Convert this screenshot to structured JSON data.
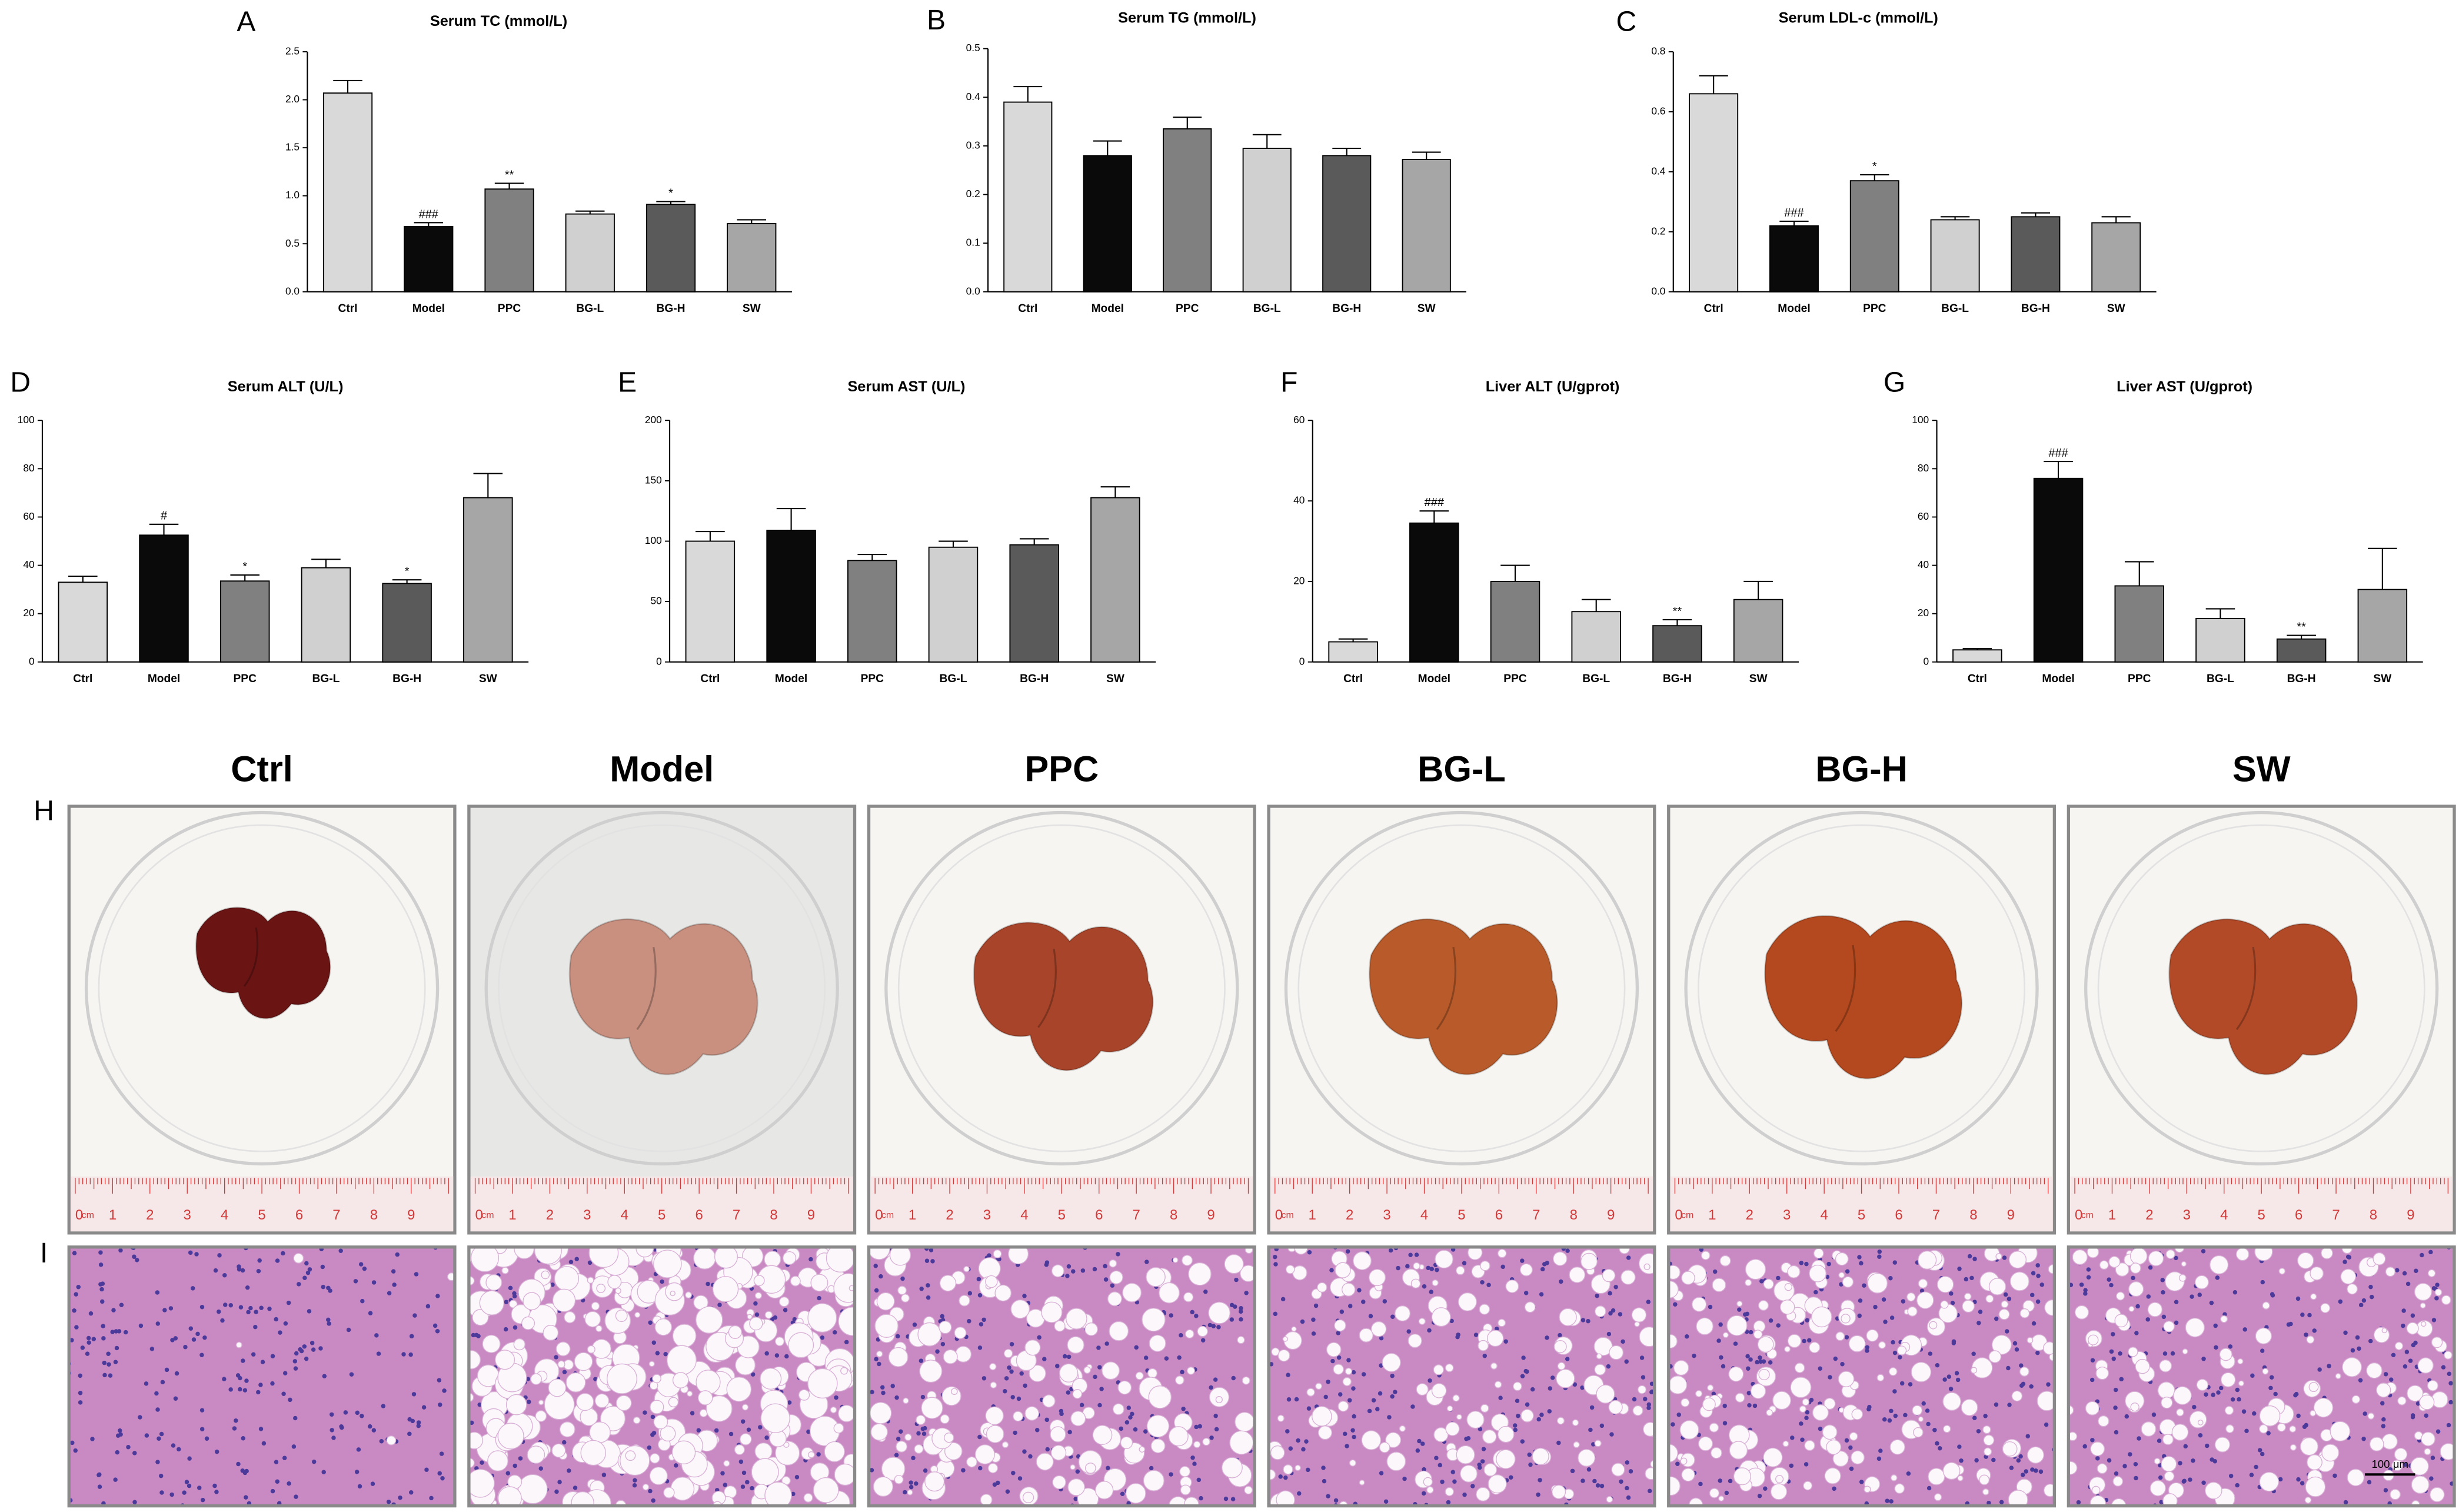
{
  "chart_data": [
    {
      "type": "bar",
      "panel": "A",
      "title": "Serum TC (mmol/L)",
      "categories": [
        "Ctrl",
        "Model",
        "PPC",
        "BG-L",
        "BG-H",
        "SW"
      ],
      "values": [
        2.07,
        0.68,
        1.07,
        0.81,
        0.91,
        0.71
      ],
      "errors": [
        0.13,
        0.04,
        0.06,
        0.03,
        0.03,
        0.04
      ],
      "value_annotations": [
        null,
        "###",
        "**",
        null,
        "*",
        null
      ],
      "colors": [
        "#d9d9d9",
        "#0a0a0a",
        "#808080",
        "#d0d0d0",
        "#5a5a5a",
        "#a6a6a6"
      ],
      "ylim": [
        0,
        2.5
      ],
      "yticks": [
        {
          "value": 0,
          "label": "0.0"
        },
        0.5,
        {
          "value": 1,
          "label": "1.0"
        },
        1.5,
        {
          "value": 2,
          "label": "2.0"
        },
        2.5
      ]
    },
    {
      "type": "bar",
      "panel": "B",
      "title": "Serum TG (mmol/L)",
      "categories": [
        "Ctrl",
        "Model",
        "PPC",
        "BG-L",
        "BG-H",
        "SW"
      ],
      "values": [
        0.39,
        0.28,
        0.335,
        0.295,
        0.28,
        0.272
      ],
      "errors": [
        0.032,
        0.03,
        0.024,
        0.028,
        0.015,
        0.015
      ],
      "value_annotations": [
        null,
        null,
        null,
        null,
        null,
        null
      ],
      "colors": [
        "#d9d9d9",
        "#0a0a0a",
        "#808080",
        "#d0d0d0",
        "#5a5a5a",
        "#a6a6a6"
      ],
      "ylim": [
        0,
        0.5
      ],
      "yticks": [
        {
          "value": 0,
          "label": "0.0"
        },
        0.1,
        0.2,
        0.3,
        0.4,
        0.5
      ]
    },
    {
      "type": "bar",
      "panel": "C",
      "title": "Serum LDL-c (mmol/L)",
      "categories": [
        "Ctrl",
        "Model",
        "PPC",
        "BG-L",
        "BG-H",
        "SW"
      ],
      "values": [
        0.66,
        0.22,
        0.37,
        0.24,
        0.25,
        0.23
      ],
      "errors": [
        0.06,
        0.015,
        0.02,
        0.01,
        0.013,
        0.02
      ],
      "value_annotations": [
        null,
        "###",
        "*",
        null,
        null,
        null
      ],
      "colors": [
        "#d9d9d9",
        "#0a0a0a",
        "#808080",
        "#d0d0d0",
        "#5a5a5a",
        "#a6a6a6"
      ],
      "ylim": [
        0,
        0.8
      ],
      "yticks": [
        {
          "value": 0,
          "label": "0.0"
        },
        0.2,
        0.4,
        0.6,
        0.8
      ]
    },
    {
      "type": "bar",
      "panel": "D",
      "title": "Serum ALT (U/L)",
      "categories": [
        "Ctrl",
        "Model",
        "PPC",
        "BG-L",
        "BG-H",
        "SW"
      ],
      "values": [
        33,
        52.5,
        33.5,
        39,
        32.5,
        68
      ],
      "errors": [
        2.5,
        4.5,
        2.5,
        3.5,
        1.5,
        10
      ],
      "value_annotations": [
        null,
        "#",
        "*",
        null,
        "*",
        null
      ],
      "colors": [
        "#d9d9d9",
        "#0a0a0a",
        "#808080",
        "#d0d0d0",
        "#5a5a5a",
        "#a6a6a6"
      ],
      "ylim": [
        0,
        100
      ],
      "yticks": [
        0,
        20,
        40,
        60,
        80,
        100
      ]
    },
    {
      "type": "bar",
      "panel": "E",
      "title": "Serum AST (U/L)",
      "categories": [
        "Ctrl",
        "Model",
        "PPC",
        "BG-L",
        "BG-H",
        "SW"
      ],
      "values": [
        100,
        109,
        84,
        95,
        97,
        136
      ],
      "errors": [
        8,
        18,
        5,
        5,
        5,
        9
      ],
      "value_annotations": [
        null,
        null,
        null,
        null,
        null,
        null
      ],
      "colors": [
        "#d9d9d9",
        "#0a0a0a",
        "#808080",
        "#d0d0d0",
        "#5a5a5a",
        "#a6a6a6"
      ],
      "ylim": [
        0,
        200
      ],
      "yticks": [
        0,
        50,
        100,
        150,
        200
      ]
    },
    {
      "type": "bar",
      "panel": "F",
      "title": "Liver ALT (U/gprot)",
      "categories": [
        "Ctrl",
        "Model",
        "PPC",
        "BG-L",
        "BG-H",
        "SW"
      ],
      "values": [
        5,
        34.5,
        20,
        12.5,
        9,
        15.5
      ],
      "errors": [
        0.7,
        3,
        4,
        3,
        1.5,
        4.5
      ],
      "value_annotations": [
        null,
        "###",
        null,
        null,
        "**",
        null
      ],
      "colors": [
        "#d9d9d9",
        "#0a0a0a",
        "#808080",
        "#d0d0d0",
        "#5a5a5a",
        "#a6a6a6"
      ],
      "ylim": [
        0,
        60
      ],
      "yticks": [
        0,
        20,
        40,
        60
      ]
    },
    {
      "type": "bar",
      "panel": "G",
      "title": "Liver AST (U/gprot)",
      "categories": [
        "Ctrl",
        "Model",
        "PPC",
        "BG-L",
        "BG-H",
        "SW"
      ],
      "values": [
        5,
        76,
        31.5,
        18,
        9.5,
        30
      ],
      "errors": [
        0.5,
        7,
        10,
        4,
        1.5,
        17
      ],
      "value_annotations": [
        null,
        "###",
        null,
        null,
        "**",
        null
      ],
      "colors": [
        "#d9d9d9",
        "#0a0a0a",
        "#808080",
        "#d0d0d0",
        "#5a5a5a",
        "#a6a6a6"
      ],
      "ylim": [
        0,
        100
      ],
      "yticks": [
        0,
        20,
        40,
        60,
        80,
        100
      ]
    }
  ],
  "photos": {
    "panel": "H",
    "columns": [
      "Ctrl",
      "Model",
      "PPC",
      "BG-L",
      "BG-H",
      "SW"
    ],
    "ruler_labels": [
      "0",
      "cm",
      "1",
      "2",
      "3",
      "4",
      "5",
      "6",
      "7",
      "8",
      "9"
    ]
  },
  "histology": {
    "panel": "I",
    "scale_bar": "100 μm"
  }
}
